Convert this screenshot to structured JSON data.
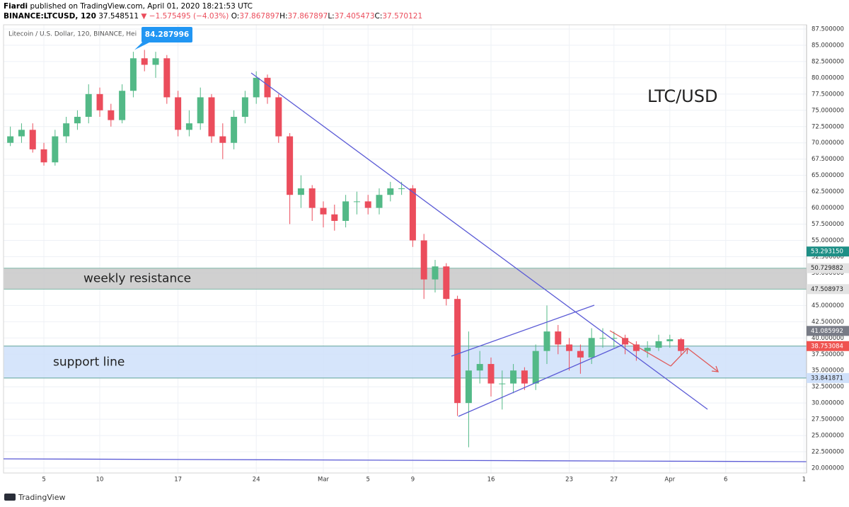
{
  "header": {
    "author": "Fiardi",
    "published": "published on TradingView.com, April 01, 2020 18:21:53 UTC",
    "symbol": "BINANCE:LTCUSD, 120",
    "price": "37.548511",
    "change": "▼ −1.575495 (−4.03%)",
    "ohlc": [
      {
        "label": "O:",
        "value": "37.867897"
      },
      {
        "label": "H:",
        "value": "37.867897"
      },
      {
        "label": "L:",
        "value": "37.405473"
      },
      {
        "label": "C:",
        "value": "37.570121"
      }
    ]
  },
  "chart_data": {
    "type": "candlestick",
    "title": "Litecoin / U.S. Dollar, 120, BINANCE, Hei",
    "watermark": "LTC/USD",
    "x": [
      2,
      3,
      4,
      5,
      6,
      7,
      8,
      9,
      10,
      11,
      12,
      13,
      14,
      15,
      16,
      17,
      18,
      19,
      20,
      21,
      22,
      23,
      24,
      25,
      26,
      27,
      28,
      29,
      30,
      31,
      32,
      33,
      34,
      35,
      36,
      37,
      38,
      39,
      40,
      41,
      42,
      43,
      44,
      45,
      46,
      47,
      48,
      49,
      50,
      51,
      52,
      53,
      54,
      55,
      56,
      57,
      58,
      59,
      60,
      61,
      62
    ],
    "open": [
      70,
      71,
      72,
      69,
      67,
      71,
      73,
      74,
      77.5,
      75,
      73.5,
      78,
      83,
      82,
      83,
      77,
      72,
      73,
      77,
      71,
      70,
      74,
      77,
      80,
      77,
      71,
      62,
      63,
      60,
      59,
      58,
      61,
      61,
      60,
      62,
      63,
      63,
      55,
      49,
      51,
      46,
      30,
      35,
      36,
      33,
      33,
      35,
      33,
      38,
      41,
      39,
      38,
      37,
      40,
      40,
      40,
      39,
      38,
      38.5,
      39.5,
      39.8
    ],
    "high": [
      72.5,
      73,
      73,
      70,
      72,
      74,
      75,
      79,
      78.5,
      76,
      79,
      84,
      84.287996,
      84,
      83.5,
      78,
      75,
      78.5,
      77.5,
      73,
      75,
      78,
      81,
      80.5,
      77.5,
      71.5,
      65,
      63.5,
      61,
      60.5,
      62,
      62.5,
      62,
      63,
      64,
      64,
      63.5,
      56,
      52,
      51.5,
      46.5,
      41,
      38,
      37,
      35,
      36,
      35.5,
      39,
      45,
      42,
      40,
      39,
      41.5,
      41.5,
      41,
      40.5,
      39.5,
      39.5,
      40.5,
      40.5,
      40
    ],
    "low": [
      69.5,
      70,
      68.5,
      66.5,
      66.5,
      70,
      72,
      73,
      74,
      72.5,
      73,
      77,
      81,
      80,
      76,
      71,
      71,
      72,
      70,
      67.5,
      69,
      73,
      76,
      76,
      70,
      57.5,
      60,
      58,
      57,
      56.5,
      57,
      59,
      59,
      59,
      61,
      62,
      54,
      46,
      47,
      45,
      28,
      23.2,
      33,
      31,
      29,
      31.5,
      32,
      32,
      36,
      37.5,
      35,
      34.5,
      36,
      38.5,
      38.5,
      37.5,
      36.5,
      37,
      38,
      38.5,
      37.3
    ],
    "close": [
      71,
      72,
      69,
      67,
      71,
      73,
      74,
      77.5,
      75,
      73.5,
      78,
      83,
      82,
      83,
      77,
      72,
      73,
      77,
      71,
      70,
      74,
      77,
      80,
      77,
      71,
      62,
      63,
      60,
      59,
      58,
      61,
      61,
      60,
      62,
      63,
      63,
      55,
      49,
      51,
      46,
      30,
      35,
      36,
      33,
      33,
      35,
      33,
      38,
      41,
      39,
      38,
      37,
      40,
      40,
      40,
      39,
      38,
      38.5,
      39.5,
      39.8,
      38
    ],
    "up_color": "#53b987",
    "down_color": "#eb4d5c",
    "xlim": [
      1.39,
      73.23
    ],
    "xticks": [
      5,
      10,
      17,
      24,
      {
        "value": 30,
        "label": "Mar"
      },
      {
        "value": 34,
        "label": "5"
      },
      {
        "value": 38,
        "label": "9"
      },
      {
        "value": 45,
        "label": "16"
      },
      {
        "value": 52,
        "label": "23"
      },
      {
        "value": 56,
        "label": "27"
      },
      {
        "value": 61,
        "label": "Apr"
      },
      {
        "value": 66,
        "label": "6"
      },
      {
        "value": 73,
        "label": "1"
      }
    ],
    "ylim": [
      19.24,
      88.15
    ],
    "yticks": [
      {
        "value": 20,
        "label": "20.000000"
      },
      {
        "value": 22.5,
        "label": "22.500000"
      },
      {
        "value": 25,
        "label": "25.000000"
      },
      {
        "value": 27.5,
        "label": "27.500000"
      },
      {
        "value": 30,
        "label": "30.000000"
      },
      {
        "value": 32.5,
        "label": "32.500000"
      },
      {
        "value": 35,
        "label": "35.000000"
      },
      {
        "value": 37.5,
        "label": "37.500000"
      },
      {
        "value": 40,
        "label": "40.000000"
      },
      {
        "value": 42.5,
        "label": "42.500000"
      },
      {
        "value": 45,
        "label": "45.000000"
      },
      {
        "value": 47.5,
        "label": "47.500000"
      },
      {
        "value": 50,
        "label": "50.000000"
      },
      {
        "value": 52.5,
        "label": "52.500000"
      },
      {
        "value": 55,
        "label": "55.000000"
      },
      {
        "value": 57.5,
        "label": "57.500000"
      },
      {
        "value": 60,
        "label": "60.000000"
      },
      {
        "value": 62.5,
        "label": "62.500000"
      },
      {
        "value": 65,
        "label": "65.000000"
      },
      {
        "value": 67.5,
        "label": "67.500000"
      },
      {
        "value": 70,
        "label": "70.000000"
      },
      {
        "value": 72.5,
        "label": "72.500000"
      },
      {
        "value": 75,
        "label": "75.000000"
      },
      {
        "value": 77.5,
        "label": "77.500000"
      },
      {
        "value": 80,
        "label": "80.000000"
      },
      {
        "value": 82.5,
        "label": "82.500000"
      },
      {
        "value": 85,
        "label": "85.000000"
      },
      {
        "value": 87.5,
        "label": "87.500000"
      }
    ],
    "grid": true,
    "callout": 84.287996,
    "zones": [
      {
        "name": "weekly resistance",
        "low": 47.508973,
        "high": 50.729882,
        "color": "#c8c8c8",
        "border": "#7fb8a8"
      },
      {
        "name": "support line",
        "low": 33.841871,
        "high": 38.753084,
        "color": "#cfe0fa",
        "border": "#5fa39a"
      }
    ],
    "price_labels": [
      {
        "value": 53.29315,
        "label": "53.293150",
        "color": "#1e8f86"
      },
      {
        "value": 50.729882,
        "color": "#e3e3e3"
      },
      {
        "value": 47.508973,
        "color": "#e3e3e3"
      },
      {
        "value": 41.085992,
        "color": "#787b86"
      },
      {
        "value": 38.753084,
        "color": "#ef5350"
      },
      {
        "value": 33.841871,
        "color": "#cfe0fa"
      }
    ]
  },
  "footer": {
    "brand": "TradingView"
  }
}
